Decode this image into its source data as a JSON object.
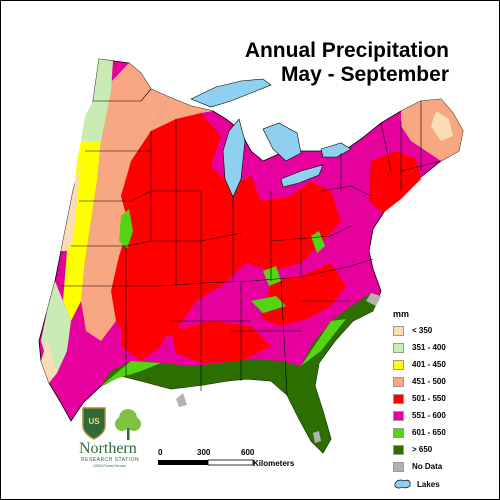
{
  "title": {
    "line1": "Annual Precipitation",
    "line2": "May - September"
  },
  "legend": {
    "unit": "mm",
    "items": [
      {
        "label": "< 350",
        "color": "#fcdcb4"
      },
      {
        "label": "351 - 400",
        "color": "#c8ecb4"
      },
      {
        "label": "401 - 450",
        "color": "#ffff00"
      },
      {
        "label": "451 - 500",
        "color": "#f7a882"
      },
      {
        "label": "501 - 550",
        "color": "#ff0000"
      },
      {
        "label": "551 - 600",
        "color": "#e6009e"
      },
      {
        "label": "601 - 650",
        "color": "#55d414"
      },
      {
        "label": "> 650",
        "color": "#2d6e00"
      },
      {
        "label": "No Data",
        "color": "#b2b2b2"
      }
    ],
    "lakes_label": "Lakes",
    "lakes_color": "#8fd0f0"
  },
  "scale_bar": {
    "ticks": [
      "0",
      "300",
      "600"
    ],
    "unit": "Kilometers"
  },
  "logo": {
    "agency": "Northern",
    "station": "RESEARCH STATION",
    "tagline": "USDA Forest Service",
    "shield_text": "US"
  }
}
